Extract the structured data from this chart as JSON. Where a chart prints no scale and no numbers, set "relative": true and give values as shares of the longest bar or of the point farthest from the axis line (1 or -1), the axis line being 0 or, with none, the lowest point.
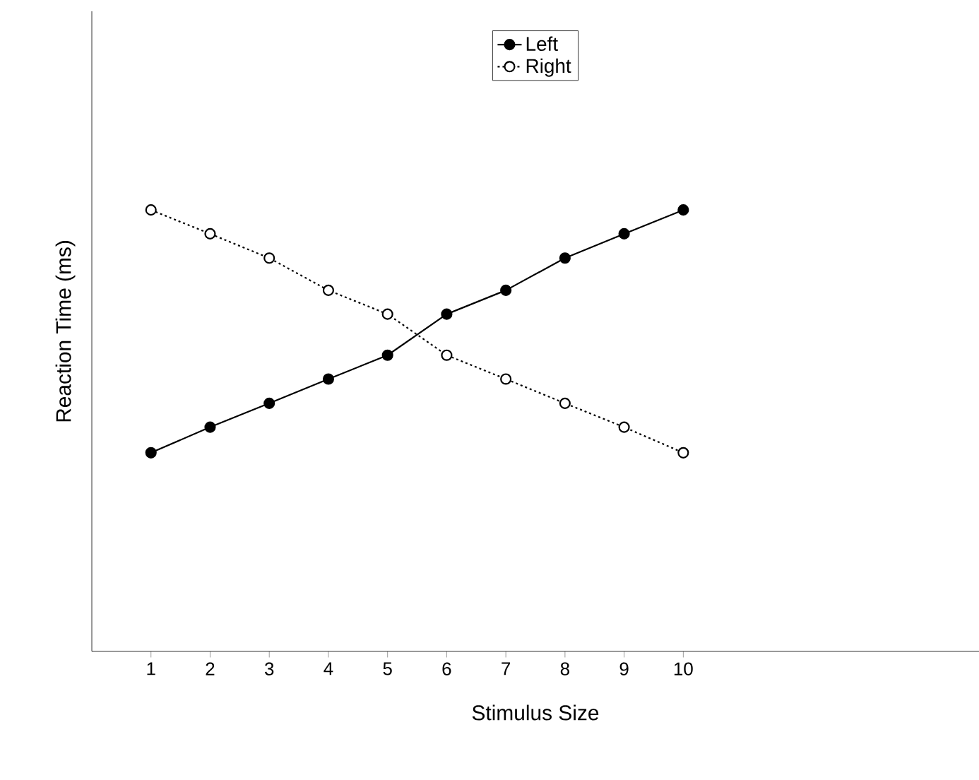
{
  "chart_data": {
    "type": "line",
    "xlabel": "Stimulus Size",
    "ylabel": "Reaction Time (ms)",
    "relative": true,
    "x": [
      1,
      2,
      3,
      4,
      5,
      6,
      7,
      8,
      9,
      10
    ],
    "xlim": [
      0,
      15
    ],
    "xticks": [
      1,
      2,
      3,
      4,
      5,
      6,
      7,
      8,
      9,
      10
    ],
    "legend": "top",
    "marker": "circle",
    "series": [
      {
        "name": "Left",
        "color": "#000000",
        "line_style": "solid",
        "values": [
          0.45,
          0.508,
          0.562,
          0.617,
          0.671,
          0.764,
          0.818,
          0.891,
          0.946,
          1
        ]
      },
      {
        "name": "Right",
        "color": "#000000",
        "line_style": "dotted",
        "values": [
          1,
          0.946,
          0.891,
          0.818,
          0.764,
          0.671,
          0.617,
          0.562,
          0.508,
          0.45
        ]
      }
    ]
  }
}
